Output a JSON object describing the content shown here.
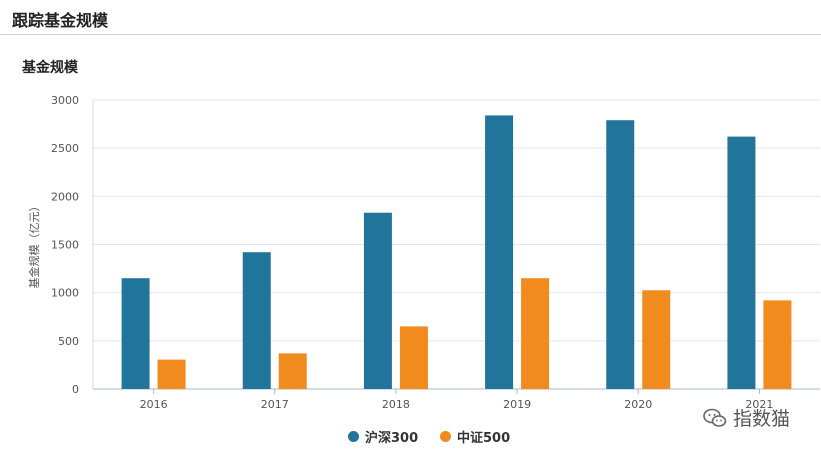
{
  "section": {
    "title": "跟踪基金规模"
  },
  "chart_data": {
    "type": "bar",
    "title": "基金规模",
    "xlabel": "",
    "ylabel": "基金规模（亿元）",
    "categories": [
      "2016",
      "2017",
      "2018",
      "2019",
      "2020",
      "2021"
    ],
    "ylim": [
      0,
      3000
    ],
    "yticks": [
      0,
      500,
      1000,
      1500,
      2000,
      2500,
      3000
    ],
    "grid": true,
    "legend_position": "bottom",
    "series": [
      {
        "name": "沪深300",
        "color": "#21759b",
        "values": [
          1150,
          1420,
          1830,
          2840,
          2790,
          2620
        ]
      },
      {
        "name": "中证500",
        "color": "#f28b1e",
        "values": [
          305,
          370,
          650,
          1150,
          1025,
          920
        ]
      }
    ]
  },
  "watermark": {
    "text": "指数猫",
    "icon": "wechat-icon"
  }
}
